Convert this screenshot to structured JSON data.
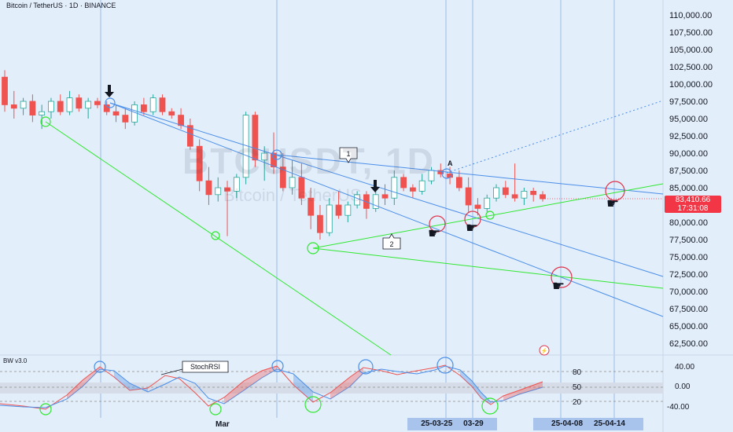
{
  "chart": {
    "symbol_title": "Bitcoin / TetherUS · 1D · BINANCE",
    "watermark_symbol": "BTCUSDT, 1D",
    "watermark_name": "Bitcoin / TetherUS",
    "current_price": "83,410.66",
    "countdown": "17:31:08",
    "price_axis": [
      "110,000.00",
      "107,500.00",
      "105,000.00",
      "102,500.00",
      "100,000.00",
      "97,500.00",
      "95,000.00",
      "92,500.00",
      "90,000.00",
      "87,500.00",
      "85,000.00",
      "82,500.00",
      "80,000.00",
      "77,500.00",
      "75,000.00",
      "72,500.00",
      "70,000.00",
      "67,500.00",
      "65,000.00",
      "62,500.00"
    ],
    "annotations": {
      "label_1": "1",
      "label_2": "2",
      "label_a": "A",
      "stochrsi": "StochRSI"
    },
    "indicator_name": "BW v3.0",
    "indicator_levels_left": [
      "80",
      "50",
      "20"
    ],
    "indicator_axis": [
      "40.00",
      "0.00",
      "-40.00"
    ],
    "x_axis": {
      "month": "Mar",
      "date_pills": [
        "25-03-25",
        "03-29",
        "25-04-08",
        "25-04-14"
      ]
    },
    "colors": {
      "background": "#e3eefb",
      "up_candle": "#26a69a",
      "down_candle": "#ef5350",
      "trend_blue": "#4a8ee8",
      "trend_green": "#2ee82e",
      "price_tag": "#f23645"
    }
  },
  "chart_data": {
    "type": "candlestick",
    "symbol": "BTCUSDT",
    "timeframe": "1D",
    "ohlc_approx": [
      [
        101000,
        102000,
        96000,
        97000
      ],
      [
        97000,
        99000,
        95000,
        96500
      ],
      [
        96500,
        98000,
        95500,
        97500
      ],
      [
        97500,
        98500,
        94500,
        95500
      ],
      [
        95500,
        97000,
        93500,
        96000
      ],
      [
        96000,
        98000,
        95000,
        97500
      ],
      [
        97500,
        98500,
        95500,
        96000
      ],
      [
        96000,
        99000,
        95500,
        98000
      ],
      [
        98000,
        98500,
        96000,
        96500
      ],
      [
        96500,
        98000,
        95000,
        97500
      ],
      [
        97500,
        98000,
        96500,
        97000
      ],
      [
        97000,
        97500,
        95500,
        96000
      ],
      [
        96000,
        97000,
        94500,
        95500
      ],
      [
        95500,
        96500,
        93500,
        94500
      ],
      [
        94500,
        97500,
        94000,
        97000
      ],
      [
        97000,
        98000,
        95500,
        96000
      ],
      [
        96000,
        98500,
        95500,
        98000
      ],
      [
        98000,
        98500,
        95500,
        96000
      ],
      [
        96000,
        96500,
        95000,
        95500
      ],
      [
        95500,
        96500,
        93500,
        94000
      ],
      [
        94000,
        95000,
        90500,
        91000
      ],
      [
        91000,
        92000,
        84500,
        86000
      ],
      [
        86000,
        88000,
        82500,
        84000
      ],
      [
        84000,
        86500,
        83000,
        85000
      ],
      [
        85000,
        86000,
        78000,
        84500
      ],
      [
        84500,
        87000,
        83500,
        86500
      ],
      [
        86500,
        96000,
        85500,
        95500
      ],
      [
        95500,
        96000,
        88000,
        89000
      ],
      [
        89000,
        91000,
        86000,
        90000
      ],
      [
        90000,
        93000,
        87000,
        88000
      ],
      [
        88000,
        90000,
        84500,
        85000
      ],
      [
        85000,
        89000,
        84000,
        86500
      ],
      [
        86500,
        88500,
        82500,
        83500
      ],
      [
        83500,
        85000,
        79000,
        81000
      ],
      [
        81000,
        82500,
        77500,
        78500
      ],
      [
        78500,
        83500,
        78000,
        82500
      ],
      [
        82500,
        84500,
        80500,
        81000
      ],
      [
        81000,
        83000,
        80000,
        82500
      ],
      [
        82500,
        84500,
        82000,
        84000
      ],
      [
        84000,
        84500,
        80500,
        82000
      ],
      [
        82000,
        85000,
        81500,
        84000
      ],
      [
        84000,
        85500,
        82500,
        83500
      ],
      [
        83500,
        87500,
        82500,
        86500
      ],
      [
        86500,
        87000,
        84500,
        85000
      ],
      [
        85000,
        85500,
        83500,
        84500
      ],
      [
        84500,
        87000,
        84000,
        86000
      ],
      [
        86000,
        88000,
        85500,
        87500
      ],
      [
        87500,
        88500,
        86500,
        87000
      ],
      [
        87000,
        88000,
        85500,
        86500
      ],
      [
        86500,
        87500,
        84500,
        85000
      ],
      [
        85000,
        86500,
        81500,
        82500
      ],
      [
        82500,
        83500,
        81000,
        82000
      ],
      [
        82000,
        84000,
        81500,
        83500
      ],
      [
        83500,
        85500,
        83000,
        85000
      ],
      [
        85000,
        86000,
        83500,
        84000
      ],
      [
        84000,
        88500,
        83000,
        83500
      ],
      [
        83500,
        85000,
        82500,
        84500
      ],
      [
        84500,
        85000,
        83000,
        84000
      ],
      [
        84000,
        84500,
        83000,
        83400
      ]
    ]
  }
}
